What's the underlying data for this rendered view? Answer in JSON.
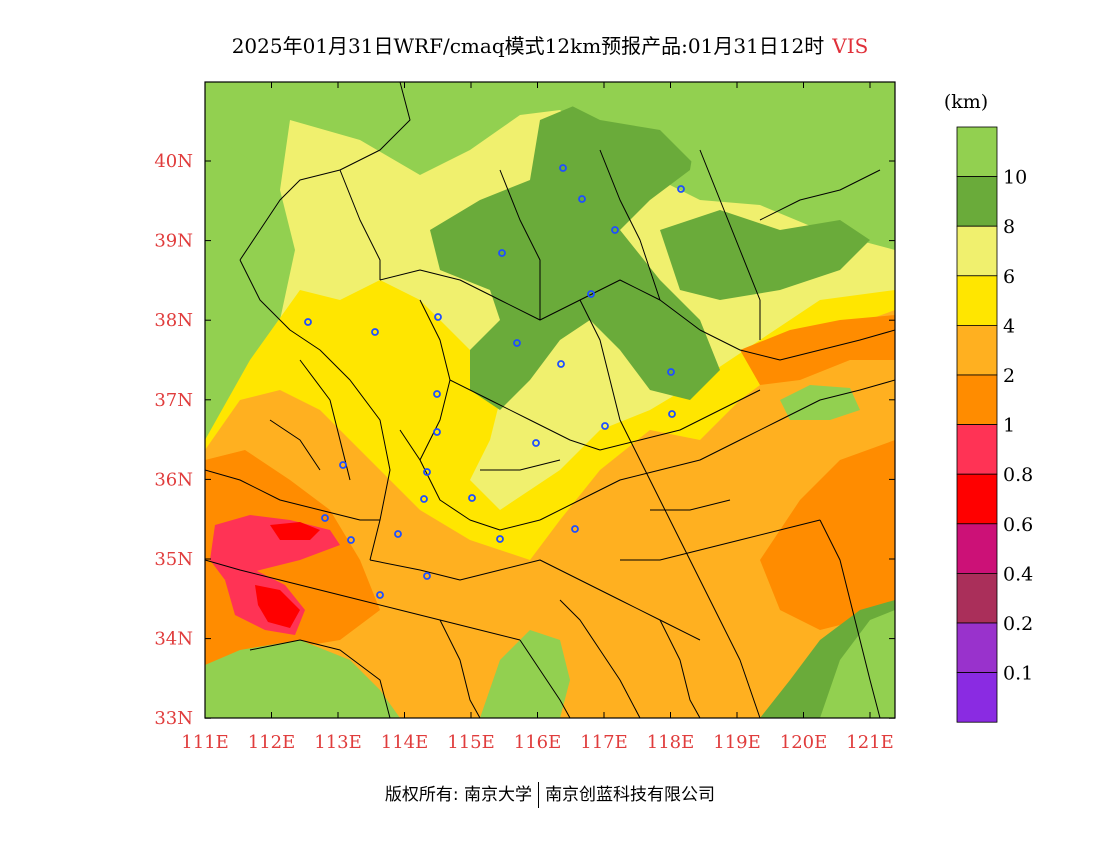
{
  "title": {
    "main": "2025年01月31日WRF/cmaq模式12km预报产品:01月31日12时",
    "variable": "VIS"
  },
  "colorbar": {
    "unit": "(km)",
    "bands": [
      {
        "color": "#92d050"
      },
      {
        "color": "#6aab3a"
      },
      {
        "color": "#f0f06e"
      },
      {
        "color": "#ffe600"
      },
      {
        "color": "#ffb020"
      },
      {
        "color": "#ff8c00"
      },
      {
        "color": "#ff3355"
      },
      {
        "color": "#ff0000"
      },
      {
        "color": "#cc1177"
      },
      {
        "color": "#aa2f5a"
      },
      {
        "color": "#9932cc"
      },
      {
        "color": "#8a2be2"
      }
    ],
    "labels": [
      "10",
      "8",
      "6",
      "4",
      "2",
      "1",
      "0.8",
      "0.6",
      "0.4",
      "0.2",
      "0.1"
    ]
  },
  "axes": {
    "lon_ticks": [
      "111E",
      "112E",
      "113E",
      "114E",
      "115E",
      "116E",
      "117E",
      "118E",
      "119E",
      "120E",
      "121E"
    ],
    "lat_ticks": [
      "40N",
      "39N",
      "38N",
      "37N",
      "36N",
      "35N",
      "34N",
      "33N"
    ]
  },
  "footer": {
    "left": "版权所有: 南京大学",
    "right": "南京创蓝科技有限公司"
  }
}
